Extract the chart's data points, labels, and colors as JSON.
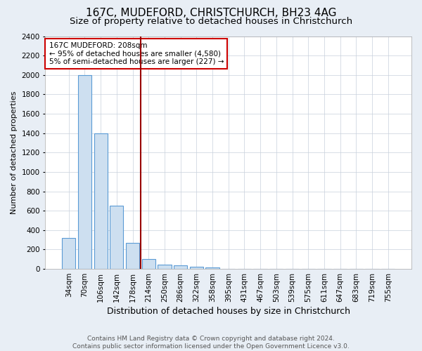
{
  "title": "167C, MUDEFORD, CHRISTCHURCH, BH23 4AG",
  "subtitle": "Size of property relative to detached houses in Christchurch",
  "xlabel": "Distribution of detached houses by size in Christchurch",
  "ylabel": "Number of detached properties",
  "bar_labels": [
    "34sqm",
    "70sqm",
    "106sqm",
    "142sqm",
    "178sqm",
    "214sqm",
    "250sqm",
    "286sqm",
    "322sqm",
    "358sqm",
    "395sqm",
    "431sqm",
    "467sqm",
    "503sqm",
    "539sqm",
    "575sqm",
    "611sqm",
    "647sqm",
    "683sqm",
    "719sqm",
    "755sqm"
  ],
  "bar_values": [
    320,
    2000,
    1400,
    650,
    270,
    100,
    47,
    35,
    20,
    15,
    0,
    0,
    0,
    0,
    0,
    0,
    0,
    0,
    0,
    0,
    0
  ],
  "bar_color": "#cddff0",
  "bar_edge_color": "#5b9bd5",
  "vline_color": "#990000",
  "annotation_text": "167C MUDEFORD: 208sqm\n← 95% of detached houses are smaller (4,580)\n5% of semi-detached houses are larger (227) →",
  "annotation_box_color": "white",
  "annotation_box_edge_color": "#cc0000",
  "ylim": [
    0,
    2400
  ],
  "yticks": [
    0,
    200,
    400,
    600,
    800,
    1000,
    1200,
    1400,
    1600,
    1800,
    2000,
    2200,
    2400
  ],
  "background_color": "#e8eef5",
  "plot_background": "#ffffff",
  "grid_color": "#c8d0dc",
  "footer": "Contains HM Land Registry data © Crown copyright and database right 2024.\nContains public sector information licensed under the Open Government Licence v3.0.",
  "title_fontsize": 11,
  "subtitle_fontsize": 9.5,
  "xlabel_fontsize": 9,
  "ylabel_fontsize": 8,
  "tick_fontsize": 7.5,
  "footer_fontsize": 6.5,
  "vline_index": 4.5
}
